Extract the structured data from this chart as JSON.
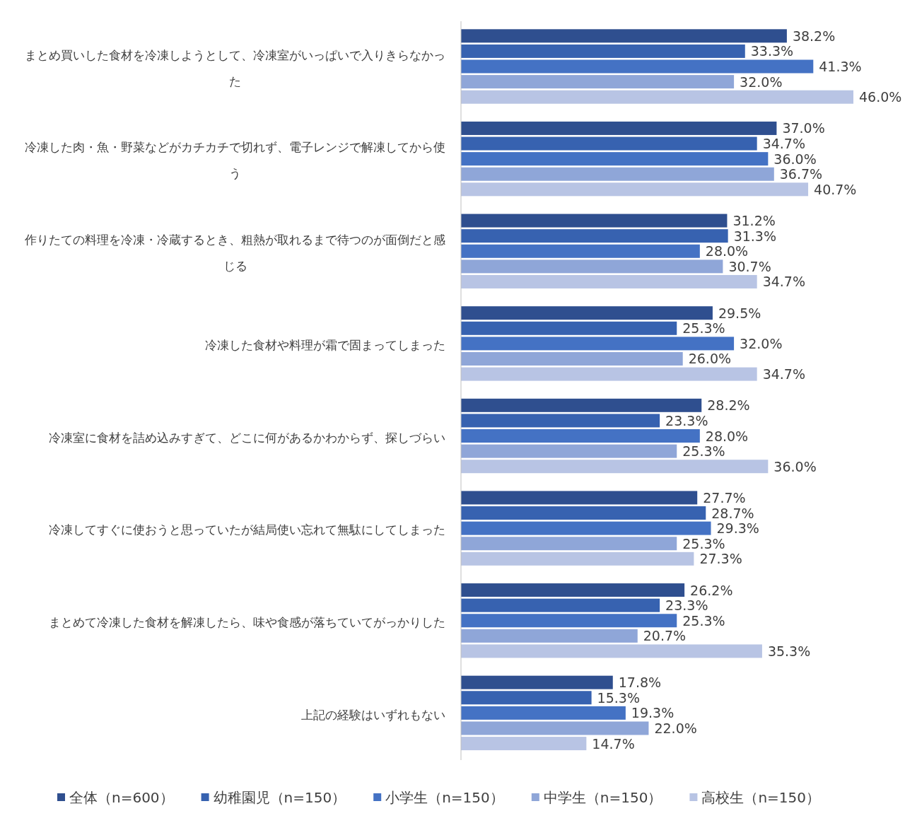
{
  "chart_data": {
    "type": "bar",
    "orientation": "horizontal",
    "legend": "bottom",
    "categories": [
      "まとめ買いした食材を冷凍しようとして、冷凍室がいっぱいで入りきらなかった",
      "冷凍した肉・魚・野菜などがカチカチで切れず、電子レンジで解凍してから使う",
      "作りたての料理を冷凍・冷蔵するとき、粗熱が取れるまで待つのが面倒だと感じる",
      "冷凍した食材や料理が霜で固まってしまった",
      "冷凍室に食材を詰め込みすぎて、どこに何があるかわからず、探しづらい",
      "冷凍してすぐに使おうと思っていたが結局使い忘れて無駄にしてしまった",
      "まとめて冷凍した食材を解凍したら、味や食感が落ちていてがっかりした",
      "上記の経験はいずれもない"
    ],
    "series": [
      {
        "name": "全体（n=600）",
        "color": "#2f4f8f",
        "values": [
          38.2,
          37.0,
          31.2,
          29.5,
          28.2,
          27.7,
          26.2,
          17.8
        ],
        "value_labels": [
          "38.2%",
          "37.0%",
          "31.2%",
          "29.5%",
          "28.2%",
          "27.7%",
          "26.2%",
          "17.8%"
        ]
      },
      {
        "name": "幼稚園児（n=150）",
        "color": "#3762b0",
        "values": [
          33.3,
          34.7,
          31.3,
          25.3,
          23.3,
          28.7,
          23.3,
          15.3
        ],
        "value_labels": [
          "33.3%",
          "34.7%",
          "31.3%",
          "25.3%",
          "23.3%",
          "28.7%",
          "23.3%",
          "15.3%"
        ]
      },
      {
        "name": "小学生（n=150）",
        "color": "#4472c4",
        "values": [
          41.3,
          36.0,
          28.0,
          32.0,
          28.0,
          29.3,
          25.3,
          19.3
        ],
        "value_labels": [
          "41.3%",
          "36.0%",
          "28.0%",
          "32.0%",
          "28.0%",
          "29.3%",
          "25.3%",
          "19.3%"
        ]
      },
      {
        "name": "中学生（n=150）",
        "color": "#8fa6d8",
        "values": [
          32.0,
          36.7,
          30.7,
          26.0,
          25.3,
          25.3,
          20.7,
          22.0
        ],
        "value_labels": [
          "32.0%",
          "36.7%",
          "30.7%",
          "26.0%",
          "25.3%",
          "25.3%",
          "20.7%",
          "22.0%"
        ]
      },
      {
        "name": "高校生（n=150）",
        "color": "#b8c4e4",
        "values": [
          46.0,
          40.7,
          34.7,
          34.7,
          36.0,
          27.3,
          35.3,
          14.7
        ],
        "value_labels": [
          "46.0%",
          "40.7%",
          "34.7%",
          "34.7%",
          "36.0%",
          "27.3%",
          "35.3%",
          "14.7%"
        ]
      }
    ]
  }
}
